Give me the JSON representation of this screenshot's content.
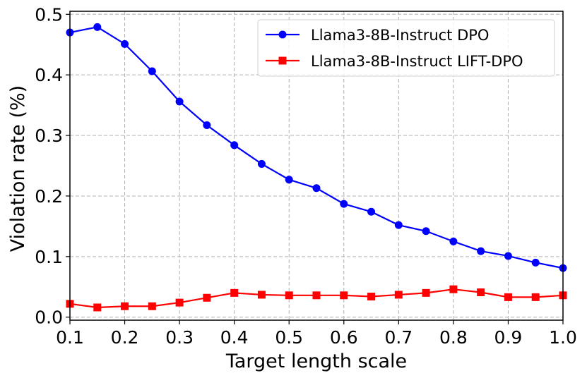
{
  "chart_data": {
    "type": "line",
    "title": "",
    "xlabel": "Target length scale",
    "ylabel": "Violation rate (%)",
    "xlim": [
      0.1,
      1.0
    ],
    "ylim": [
      -0.005,
      0.505
    ],
    "xticks": [
      0.1,
      0.2,
      0.3,
      0.4,
      0.5,
      0.6,
      0.7,
      0.8,
      0.9,
      1.0
    ],
    "xtick_labels": [
      "0.1",
      "0.2",
      "0.3",
      "0.4",
      "0.5",
      "0.6",
      "0.7",
      "0.8",
      "0.9",
      "1.0"
    ],
    "yticks": [
      0.0,
      0.1,
      0.2,
      0.3,
      0.4,
      0.5
    ],
    "ytick_labels": [
      "0.0",
      "0.1",
      "0.2",
      "0.3",
      "0.4",
      "0.5"
    ],
    "grid": true,
    "legend_position": "top-right",
    "x": [
      0.1,
      0.15,
      0.2,
      0.25,
      0.3,
      0.35,
      0.4,
      0.45,
      0.5,
      0.55,
      0.6,
      0.65,
      0.7,
      0.75,
      0.8,
      0.85,
      0.9,
      0.95,
      1.0
    ],
    "series": [
      {
        "name": "Llama3-8B-Instruct DPO",
        "color": "#0000ff",
        "marker": "circle",
        "values": [
          0.47,
          0.479,
          0.451,
          0.406,
          0.356,
          0.317,
          0.284,
          0.253,
          0.227,
          0.213,
          0.187,
          0.174,
          0.152,
          0.142,
          0.125,
          0.109,
          0.101,
          0.09,
          0.081
        ]
      },
      {
        "name": "Llama3-8B-Instruct LIFT-DPO",
        "color": "#ff0000",
        "marker": "square",
        "values": [
          0.022,
          0.016,
          0.018,
          0.018,
          0.024,
          0.032,
          0.04,
          0.037,
          0.036,
          0.036,
          0.036,
          0.034,
          0.037,
          0.04,
          0.046,
          0.041,
          0.033,
          0.033,
          0.036
        ]
      }
    ]
  }
}
